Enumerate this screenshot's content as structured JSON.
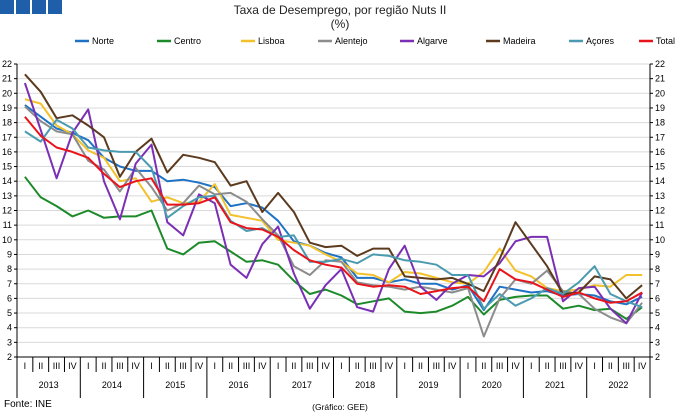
{
  "header": {
    "logo_name": "logo-icon",
    "title_line1": "Taxa de Desemprego, por região Nuts II",
    "title_line2": "(%)"
  },
  "footer": {
    "source": "Fonte: INE",
    "credit": "(Gráfico: GEE)"
  },
  "chart_data": {
    "type": "line",
    "title": "Taxa de Desemprego, por região Nuts II",
    "subtitle": "(%)",
    "xlabel": "",
    "ylabel": "",
    "ylim": [
      2,
      22
    ],
    "yticks": [
      2,
      3,
      4,
      5,
      6,
      7,
      8,
      9,
      10,
      11,
      12,
      13,
      14,
      15,
      16,
      17,
      18,
      19,
      20,
      21,
      22
    ],
    "grid": true,
    "legend_position": "top",
    "quarters": [
      "I",
      "II",
      "III",
      "IV",
      "I",
      "II",
      "III",
      "IV",
      "I",
      "II",
      "III",
      "IV",
      "I",
      "II",
      "III",
      "IV",
      "I",
      "II",
      "III",
      "IV",
      "I",
      "II",
      "III",
      "IV",
      "I",
      "II",
      "III",
      "IV",
      "I",
      "II",
      "III",
      "IV",
      "I",
      "II",
      "III",
      "IV",
      "I",
      "II",
      "III",
      "IV"
    ],
    "years": [
      "2013",
      "2014",
      "2015",
      "2016",
      "2017",
      "2018",
      "2019",
      "2020",
      "2021",
      "2022"
    ],
    "series": [
      {
        "name": "Norte",
        "color": "#1f72c4",
        "values": [
          19.2,
          18.4,
          17.6,
          17.3,
          16.8,
          15.6,
          15.0,
          14.7,
          14.7,
          14.0,
          14.1,
          13.9,
          13.6,
          12.3,
          12.5,
          12.2,
          11.3,
          9.9,
          9.6,
          9.1,
          8.8,
          7.4,
          7.4,
          7.1,
          7.3,
          7.0,
          7.0,
          6.6,
          6.9,
          5.2,
          6.8,
          6.6,
          6.4,
          6.5,
          6.2,
          6.3,
          6.2,
          5.8,
          5.6,
          6.1
        ]
      },
      {
        "name": "Centro",
        "color": "#1d8a2a",
        "values": [
          14.3,
          12.9,
          12.3,
          11.6,
          12.0,
          11.5,
          11.6,
          11.6,
          12.0,
          9.4,
          9.0,
          9.8,
          9.9,
          9.2,
          8.5,
          8.6,
          8.3,
          7.2,
          6.3,
          6.6,
          6.2,
          5.6,
          5.8,
          6.0,
          5.1,
          5.0,
          5.1,
          5.5,
          6.1,
          4.9,
          5.9,
          6.1,
          6.2,
          6.2,
          5.3,
          5.5,
          5.2,
          5.3,
          4.6,
          5.4
        ]
      },
      {
        "name": "Lisboa",
        "color": "#f3c12b",
        "values": [
          19.6,
          19.3,
          17.8,
          17.2,
          16.1,
          15.6,
          14.0,
          14.2,
          12.6,
          12.9,
          12.5,
          12.6,
          13.8,
          11.7,
          11.5,
          11.3,
          10.0,
          9.8,
          9.6,
          9.0,
          8.5,
          7.7,
          7.6,
          7.1,
          7.8,
          7.7,
          7.4,
          7.1,
          7.0,
          7.8,
          9.4,
          7.9,
          7.5,
          6.7,
          6.5,
          6.6,
          6.9,
          6.8,
          7.6,
          7.6
        ]
      },
      {
        "name": "Alentejo",
        "color": "#8c8c8c",
        "values": [
          19.1,
          18.1,
          17.4,
          17.2,
          15.4,
          14.8,
          13.3,
          14.9,
          13.6,
          12.0,
          12.5,
          13.7,
          13.1,
          13.2,
          12.6,
          11.4,
          10.3,
          8.2,
          7.6,
          8.6,
          8.5,
          7.1,
          6.9,
          6.8,
          6.6,
          6.8,
          6.6,
          6.4,
          6.7,
          3.4,
          6.0,
          7.3,
          7.0,
          7.9,
          6.5,
          6.3,
          5.3,
          4.7,
          4.3,
          5.7
        ]
      },
      {
        "name": "Algarve",
        "color": "#7a2fb5",
        "values": [
          20.7,
          17.5,
          14.2,
          17.3,
          18.9,
          14.0,
          11.4,
          15.2,
          16.5,
          11.2,
          10.3,
          13.1,
          12.5,
          8.3,
          7.4,
          9.7,
          10.9,
          7.7,
          5.3,
          6.9,
          8.0,
          5.4,
          5.1,
          8.0,
          9.6,
          6.8,
          5.9,
          7.0,
          7.6,
          7.5,
          8.4,
          9.9,
          10.2,
          10.2,
          5.8,
          6.7,
          6.8,
          5.3,
          4.3,
          6.4
        ]
      },
      {
        "name": "Madeira",
        "color": "#5c3a1e",
        "values": [
          21.3,
          20.1,
          18.3,
          18.5,
          17.8,
          17.0,
          14.3,
          16.0,
          16.9,
          14.6,
          15.8,
          15.6,
          15.3,
          13.7,
          14.0,
          11.9,
          13.2,
          11.9,
          9.8,
          9.5,
          9.6,
          8.9,
          9.4,
          9.4,
          7.5,
          7.4,
          7.3,
          7.4,
          7.0,
          6.5,
          8.7,
          11.2,
          9.7,
          8.2,
          6.3,
          6.4,
          7.5,
          7.3,
          6.0,
          6.9
        ]
      },
      {
        "name": "Açores",
        "color": "#4b9bb0",
        "values": [
          17.4,
          16.7,
          18.2,
          17.6,
          16.3,
          16.1,
          16.0,
          16.0,
          14.9,
          11.5,
          12.3,
          12.9,
          13.0,
          11.3,
          10.6,
          10.8,
          10.2,
          10.3,
          8.5,
          8.5,
          8.7,
          8.4,
          9.0,
          8.9,
          8.6,
          8.5,
          8.3,
          7.6,
          7.6,
          5.3,
          6.3,
          5.5,
          6.0,
          6.7,
          6.3,
          7.1,
          8.2,
          6.3,
          5.8,
          5.4
        ]
      },
      {
        "name": "Total",
        "color": "#e8141b",
        "values": [
          18.4,
          17.1,
          16.3,
          16.0,
          15.6,
          14.5,
          13.6,
          14.0,
          14.2,
          12.4,
          12.4,
          12.5,
          12.9,
          11.2,
          10.8,
          10.7,
          10.2,
          9.3,
          8.6,
          8.3,
          8.1,
          7.0,
          6.8,
          6.9,
          6.8,
          6.3,
          6.5,
          6.7,
          6.8,
          5.8,
          8.0,
          7.3,
          7.1,
          6.6,
          6.1,
          6.4,
          6.0,
          5.7,
          5.8,
          6.4
        ]
      }
    ]
  }
}
